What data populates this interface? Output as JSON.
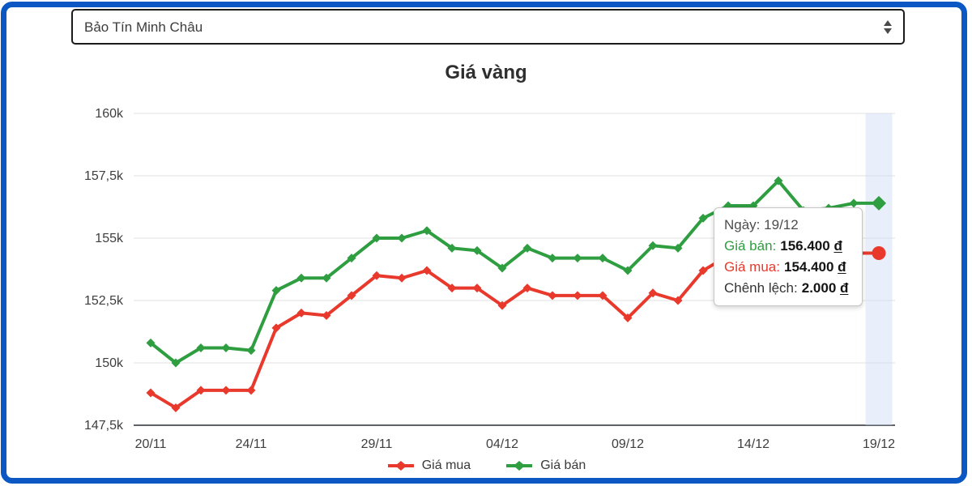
{
  "window": {
    "frame_color": "#0b57c4"
  },
  "toolbar": {
    "company_select": {
      "value": "Bảo Tín Minh Châu"
    }
  },
  "chart_data": {
    "type": "line",
    "title": "Giá vàng",
    "x": [
      "20/11",
      "21/11",
      "22/11",
      "23/11",
      "24/11",
      "25/11",
      "26/11",
      "27/11",
      "28/11",
      "29/11",
      "30/11",
      "01/12",
      "02/12",
      "03/12",
      "04/12",
      "05/12",
      "06/12",
      "07/12",
      "08/12",
      "09/12",
      "10/12",
      "11/12",
      "12/12",
      "13/12",
      "14/12",
      "15/12",
      "16/12",
      "17/12",
      "18/12",
      "19/12"
    ],
    "x_tick_labels": [
      "20/11",
      "24/11",
      "29/11",
      "04/12",
      "09/12",
      "14/12",
      "19/12"
    ],
    "x_tick_indices": [
      0,
      4,
      9,
      14,
      19,
      24,
      29
    ],
    "y_ticks": [
      160,
      157.5,
      155,
      152.5,
      150,
      147.5
    ],
    "y_tick_labels": [
      "160k",
      "157,5k",
      "155k",
      "152,5k",
      "150k",
      "147,5k"
    ],
    "ylim": [
      147.5,
      160
    ],
    "grid": true,
    "legend_position": "bottom",
    "highlight_index": 29,
    "highlight_color": "rgba(205,218,245,0.45)",
    "series": [
      {
        "name": "Giá mua",
        "color": "#e8392c",
        "point_style": "diamond",
        "end_point_style": "circle",
        "values": [
          148.8,
          148.2,
          148.9,
          148.9,
          148.9,
          151.4,
          152.0,
          151.9,
          152.7,
          153.5,
          153.4,
          153.7,
          153.0,
          153.0,
          152.3,
          153.0,
          152.7,
          152.7,
          152.7,
          151.8,
          152.8,
          152.5,
          153.7,
          154.3,
          154.3,
          155.3,
          154.1,
          154.2,
          154.4,
          154.4
        ]
      },
      {
        "name": "Giá bán",
        "color": "#2e9e41",
        "point_style": "diamond",
        "end_point_style": "diamond-large",
        "values": [
          150.8,
          150.0,
          150.6,
          150.6,
          150.5,
          152.9,
          153.4,
          153.4,
          154.2,
          155.0,
          155.0,
          155.3,
          154.6,
          154.5,
          153.8,
          154.6,
          154.2,
          154.2,
          154.2,
          153.7,
          154.7,
          154.6,
          155.8,
          156.3,
          156.3,
          157.3,
          156.1,
          156.2,
          156.4,
          156.4
        ]
      }
    ]
  },
  "tooltip": {
    "line1": {
      "label": "Ngày:",
      "value": "19/12"
    },
    "line2": {
      "label": "Giá bán:",
      "value": "156.400",
      "unit": "đ"
    },
    "line3": {
      "label": "Giá mua:",
      "value": "154.400",
      "unit": "đ"
    },
    "line4": {
      "label": "Chênh lệch:",
      "value": "2.000",
      "unit": "đ"
    }
  }
}
